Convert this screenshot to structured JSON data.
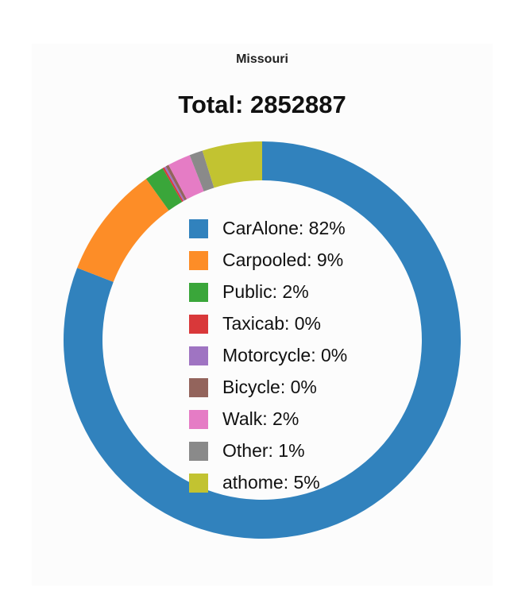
{
  "chart_data": {
    "type": "pie",
    "title": "Missouri",
    "subtitle": "Total: 2852887",
    "slices": [
      {
        "label": "CarAlone",
        "legend": "CarAlone: 82%",
        "value": 82.3,
        "color": "#3182bd"
      },
      {
        "label": "Carpooled",
        "legend": "Carpooled: 9%",
        "value": 9.3,
        "color": "#fd8d27"
      },
      {
        "label": "Public",
        "legend": "Public: 2%",
        "value": 1.6,
        "color": "#3aa63a"
      },
      {
        "label": "Taxicab",
        "legend": "Taxicab: 0%",
        "value": 0.15,
        "color": "#d9383a"
      },
      {
        "label": "Motorcycle",
        "legend": "Motorcycle: 0%",
        "value": 0.15,
        "color": "#9f74c2"
      },
      {
        "label": "Bicycle",
        "legend": "Bicycle: 0%",
        "value": 0.25,
        "color": "#93645c"
      },
      {
        "label": "Walk",
        "legend": "Walk: 2%",
        "value": 1.9,
        "color": "#e57cc5"
      },
      {
        "label": "Other",
        "legend": "Other: 1%",
        "value": 1.1,
        "color": "#8a8a8a"
      },
      {
        "label": "athome",
        "legend": "athome: 5%",
        "value": 4.95,
        "color": "#c2c331"
      }
    ],
    "donut": true,
    "legend_position": "center"
  }
}
